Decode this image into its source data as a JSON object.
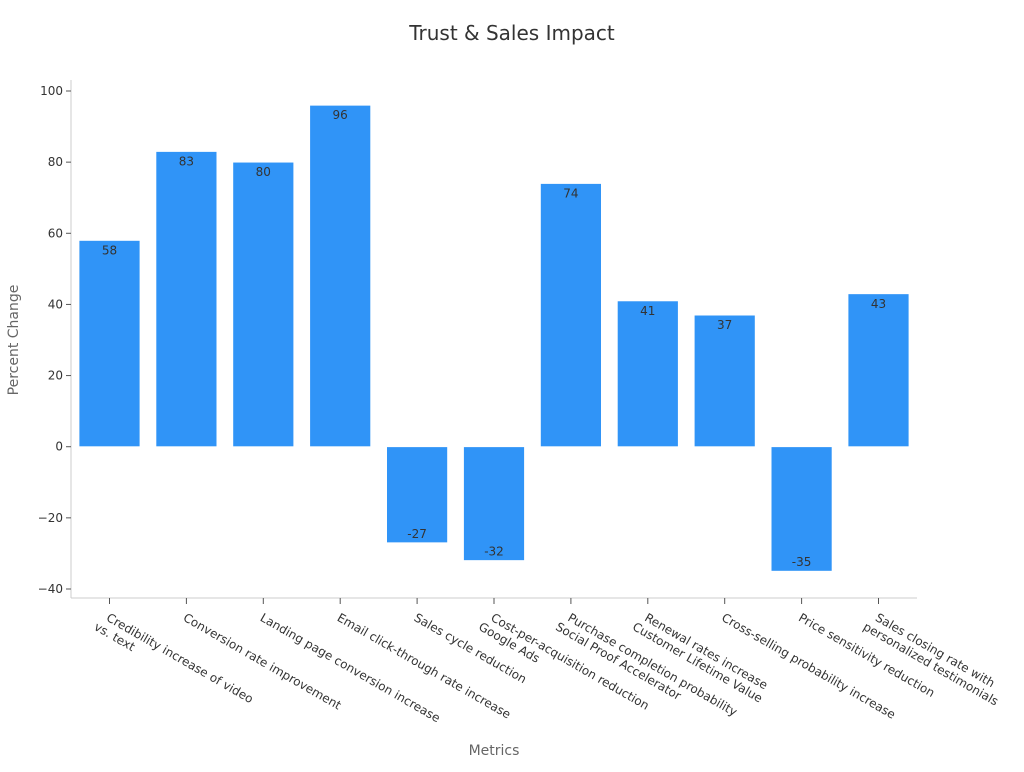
{
  "chart_data": {
    "type": "bar",
    "title": "Trust & Sales Impact",
    "xlabel": "Metrics",
    "ylabel": "Percent Change",
    "ylim": [
      -40,
      100
    ],
    "yticks": [
      -40,
      -20,
      0,
      20,
      40,
      60,
      80,
      100
    ],
    "ytick_labels": [
      "−40",
      "−20",
      "0",
      "20",
      "40",
      "60",
      "80",
      "100"
    ],
    "grid": false,
    "bar_color": "#3094f7",
    "categories": [
      [
        "Credibility increase of video",
        "vs. text"
      ],
      [
        "Conversion rate improvement"
      ],
      [
        "Landing page conversion increase"
      ],
      [
        "Email click-through rate increase"
      ],
      [
        "Sales cycle reduction"
      ],
      [
        "Cost-per-acquisition reduction",
        "Google Ads"
      ],
      [
        "Purchase completion probability",
        "Social Proof Accelerator"
      ],
      [
        "Renewal rates increase",
        "Customer Lifetime Value"
      ],
      [
        "Cross-selling probability increase"
      ],
      [
        "Price sensitivity reduction"
      ],
      [
        "Sales closing rate with",
        "personalized testimonials"
      ]
    ],
    "values": [
      58,
      83,
      80,
      96,
      -27,
      -32,
      74,
      41,
      37,
      -35,
      43
    ],
    "value_labels": [
      "58",
      "83",
      "80",
      "96",
      "-27",
      "-32",
      "74",
      "41",
      "37",
      "-35",
      "43"
    ]
  }
}
